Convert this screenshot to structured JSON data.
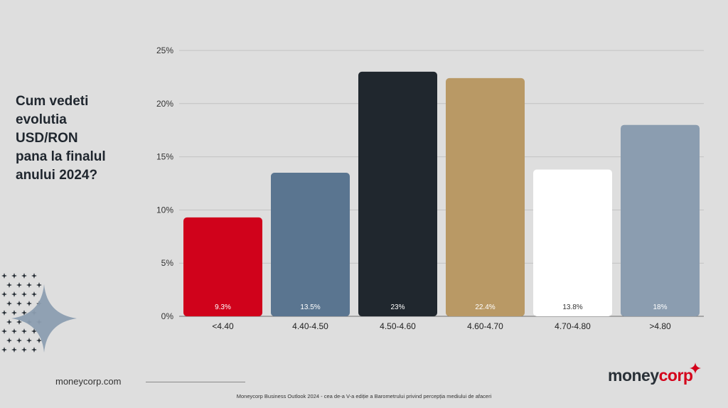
{
  "question": {
    "lines": [
      "Cum vedeti",
      "evolutia",
      "USD/RON",
      "pana la finalul",
      "anului 2024?"
    ]
  },
  "footer": {
    "url": "moneycorp.com",
    "caption": "Moneycorp Business Outlook 2024 - cea de-a V-a ediție a Barometrului privind percepția mediului de afaceri",
    "logo_part1": "money",
    "logo_part2": "corp"
  },
  "colors": {
    "brand_red": "#d4001a",
    "background": "#dedede"
  },
  "chart_data": {
    "type": "bar",
    "categories": [
      "<4.40",
      "4.40-4.50",
      "4.50-4.60",
      "4.60-4.70",
      "4.70-4.80",
      ">4.80"
    ],
    "values": [
      9.3,
      13.5,
      23,
      22.4,
      13.8,
      18
    ],
    "value_labels": [
      "9.3%",
      "13.5%",
      "23%",
      "22.4%",
      "13.8%",
      "18%"
    ],
    "bar_colors": [
      "#d0021b",
      "#5a7590",
      "#20272e",
      "#b99965",
      "#ffffff",
      "#8b9db0"
    ],
    "label_colors": [
      "#ffffff",
      "#ffffff",
      "#ffffff",
      "#ffffff",
      "#333333",
      "#ffffff"
    ],
    "yticks": [
      0,
      5,
      10,
      15,
      20,
      25
    ],
    "ytick_labels": [
      "0%",
      "5%",
      "10%",
      "15%",
      "20%",
      "25%"
    ],
    "ylim": [
      0,
      25
    ],
    "grid": true
  }
}
